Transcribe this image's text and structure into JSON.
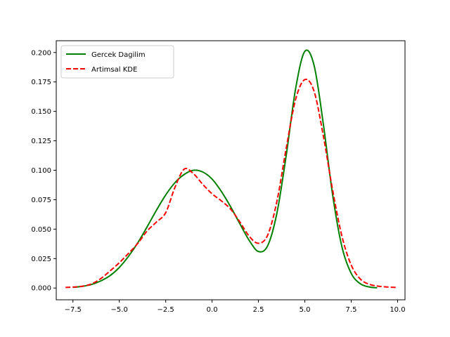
{
  "chart_data": {
    "type": "line",
    "title": "",
    "xlabel": "",
    "ylabel": "",
    "xlim": [
      -8.4,
      10.4
    ],
    "ylim": [
      -0.01,
      0.21
    ],
    "grid": false,
    "legend_position": "top-left",
    "x_ticks": [
      -7.5,
      -5.0,
      -2.5,
      0.0,
      2.5,
      5.0,
      7.5,
      10.0
    ],
    "x_tick_labels": [
      "−7.5",
      "−5.0",
      "−2.5",
      "0.0",
      "2.5",
      "5.0",
      "7.5",
      "10.0"
    ],
    "y_ticks": [
      0.0,
      0.025,
      0.05,
      0.075,
      0.1,
      0.125,
      0.15,
      0.175,
      0.2
    ],
    "y_tick_labels": [
      "0.000",
      "0.025",
      "0.050",
      "0.075",
      "0.100",
      "0.125",
      "0.150",
      "0.175",
      "0.200"
    ],
    "series": [
      {
        "name": "Gercek Dagilim",
        "color": "#008000",
        "style": "solid",
        "points": [
          [
            -7.5,
            0.0006
          ],
          [
            -7.0,
            0.0014
          ],
          [
            -6.5,
            0.003
          ],
          [
            -6.0,
            0.006
          ],
          [
            -5.5,
            0.0105
          ],
          [
            -5.0,
            0.0175
          ],
          [
            -4.5,
            0.027
          ],
          [
            -4.0,
            0.0385
          ],
          [
            -3.5,
            0.052
          ],
          [
            -3.0,
            0.066
          ],
          [
            -2.5,
            0.079
          ],
          [
            -2.0,
            0.0895
          ],
          [
            -1.5,
            0.0965
          ],
          [
            -1.0,
            0.1
          ],
          [
            -0.5,
            0.0985
          ],
          [
            0.0,
            0.0925
          ],
          [
            0.5,
            0.082
          ],
          [
            1.0,
            0.069
          ],
          [
            1.5,
            0.0545
          ],
          [
            2.0,
            0.0405
          ],
          [
            2.5,
            0.031
          ],
          [
            3.0,
            0.036
          ],
          [
            3.5,
            0.064
          ],
          [
            4.0,
            0.113
          ],
          [
            4.5,
            0.169
          ],
          [
            5.0,
            0.201
          ],
          [
            5.5,
            0.189
          ],
          [
            6.0,
            0.139
          ],
          [
            6.5,
            0.079
          ],
          [
            7.0,
            0.035
          ],
          [
            7.5,
            0.0125
          ],
          [
            8.0,
            0.0035
          ],
          [
            8.5,
            0.0008
          ],
          [
            8.9,
            0.0002
          ]
        ]
      },
      {
        "name": "Artimsal KDE",
        "color": "#ff0000",
        "style": "dashed",
        "points": [
          [
            -7.9,
            0.0005
          ],
          [
            -7.5,
            0.0008
          ],
          [
            -7.0,
            0.0015
          ],
          [
            -6.5,
            0.0035
          ],
          [
            -6.0,
            0.008
          ],
          [
            -5.5,
            0.0145
          ],
          [
            -5.0,
            0.0215
          ],
          [
            -4.5,
            0.0295
          ],
          [
            -4.0,
            0.038
          ],
          [
            -3.5,
            0.0485
          ],
          [
            -3.0,
            0.056
          ],
          [
            -2.5,
            0.064
          ],
          [
            -2.0,
            0.0855
          ],
          [
            -1.5,
            0.101
          ],
          [
            -1.0,
            0.097
          ],
          [
            -0.5,
            0.088
          ],
          [
            0.0,
            0.08
          ],
          [
            0.5,
            0.074
          ],
          [
            1.0,
            0.067
          ],
          [
            1.5,
            0.056
          ],
          [
            2.0,
            0.044
          ],
          [
            2.5,
            0.038
          ],
          [
            3.0,
            0.045
          ],
          [
            3.5,
            0.074
          ],
          [
            4.0,
            0.119
          ],
          [
            4.5,
            0.16
          ],
          [
            5.0,
            0.177
          ],
          [
            5.5,
            0.167
          ],
          [
            6.0,
            0.129
          ],
          [
            6.5,
            0.083
          ],
          [
            7.0,
            0.044
          ],
          [
            7.5,
            0.0195
          ],
          [
            8.0,
            0.0075
          ],
          [
            8.5,
            0.003
          ],
          [
            9.0,
            0.0015
          ],
          [
            9.5,
            0.0008
          ],
          [
            10.0,
            0.0004
          ]
        ]
      }
    ]
  }
}
